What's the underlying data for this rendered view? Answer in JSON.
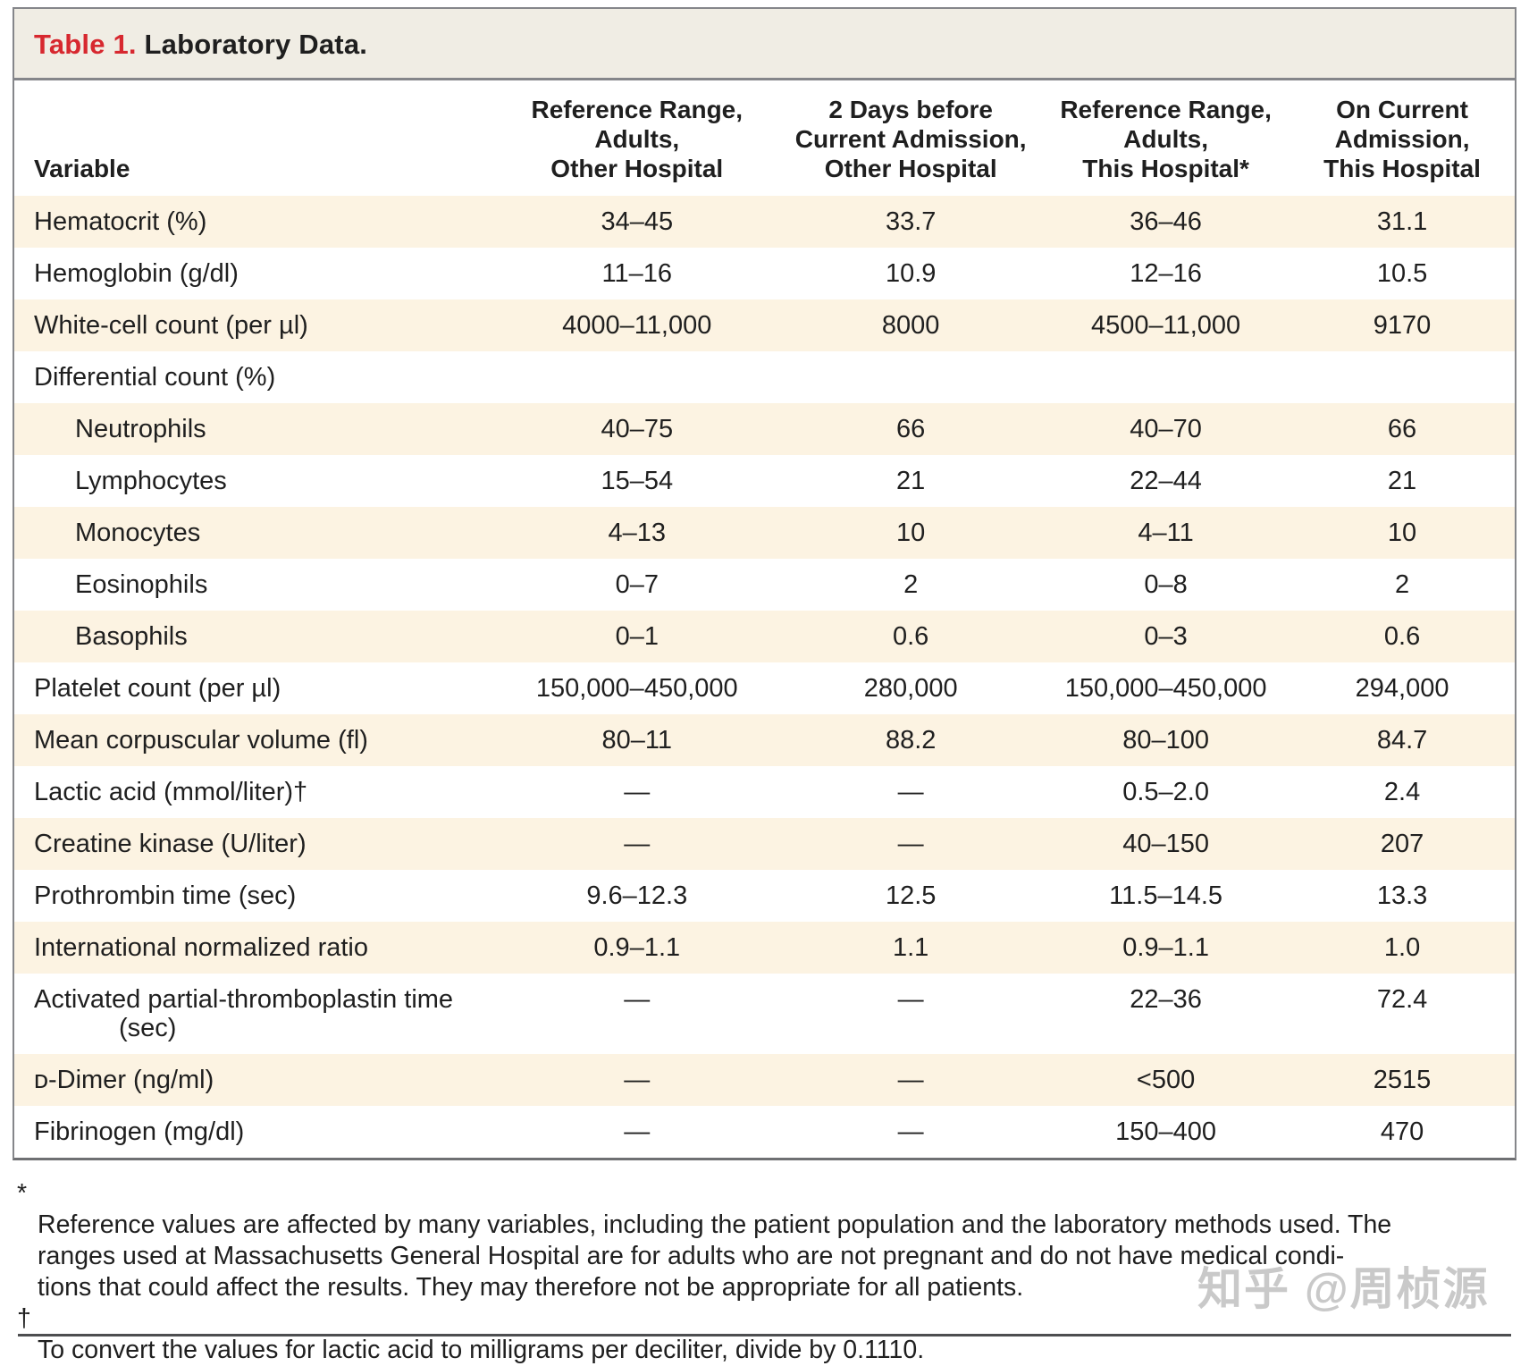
{
  "title": {
    "label": "Table 1.",
    "text": " Laboratory Data."
  },
  "table": {
    "columns": [
      "Variable",
      "Reference Range,\nAdults,\nOther Hospital",
      "2 Days before\nCurrent Admission,\nOther Hospital",
      "Reference Range,\nAdults,\nThis Hospital*",
      "On Current\nAdmission,\nThis Hospital"
    ],
    "rows": [
      {
        "label": "Hematocrit (%)",
        "indent": 0,
        "values": [
          "34–45",
          "33.7",
          "36–46",
          "31.1"
        ]
      },
      {
        "label": "Hemoglobin (g/dl)",
        "indent": 0,
        "values": [
          "11–16",
          "10.9",
          "12–16",
          "10.5"
        ]
      },
      {
        "label": "White-cell count (per µl)",
        "indent": 0,
        "values": [
          "4000–11,000",
          "8000",
          "4500–11,000",
          "9170"
        ]
      },
      {
        "label": "Differential count (%)",
        "indent": 0,
        "values": [
          "",
          "",
          "",
          ""
        ]
      },
      {
        "label": "Neutrophils",
        "indent": 1,
        "values": [
          "40–75",
          "66",
          "40–70",
          "66"
        ]
      },
      {
        "label": "Lymphocytes",
        "indent": 1,
        "values": [
          "15–54",
          "21",
          "22–44",
          "21"
        ]
      },
      {
        "label": "Monocytes",
        "indent": 1,
        "values": [
          "4–13",
          "10",
          "4–11",
          "10"
        ]
      },
      {
        "label": "Eosinophils",
        "indent": 1,
        "values": [
          "0–7",
          "2",
          "0–8",
          "2"
        ]
      },
      {
        "label": "Basophils",
        "indent": 1,
        "values": [
          "0–1",
          "0.6",
          "0–3",
          "0.6"
        ]
      },
      {
        "label": "Platelet count (per µl)",
        "indent": 0,
        "values": [
          "150,000–450,000",
          "280,000",
          "150,000–450,000",
          "294,000"
        ]
      },
      {
        "label": "Mean corpuscular volume (fl)",
        "indent": 0,
        "values": [
          "80–11",
          "88.2",
          "80–100",
          "84.7"
        ]
      },
      {
        "label": "Lactic acid (mmol/liter)†",
        "indent": 0,
        "values": [
          "—",
          "—",
          "0.5–2.0",
          "2.4"
        ]
      },
      {
        "label": "Creatine kinase (U/liter)",
        "indent": 0,
        "values": [
          "—",
          "—",
          "40–150",
          "207"
        ]
      },
      {
        "label": "Prothrombin time (sec)",
        "indent": 0,
        "values": [
          "9.6–12.3",
          "12.5",
          "11.5–14.5",
          "13.3"
        ]
      },
      {
        "label": "International normalized ratio",
        "indent": 0,
        "values": [
          "0.9–1.1",
          "1.1",
          "0.9–1.1",
          "1.0"
        ]
      },
      {
        "label": "Activated partial-thromboplastin time",
        "label2": "(sec)",
        "indent": 0,
        "values": [
          "—",
          "—",
          "22–36",
          "72.4"
        ]
      },
      {
        "label": "ᴅ-Dimer (ng/ml)",
        "indent": 0,
        "values": [
          "—",
          "—",
          "<500",
          "2515"
        ]
      },
      {
        "label": "Fibrinogen (mg/dl)",
        "indent": 0,
        "values": [
          "—",
          "—",
          "150–400",
          "470"
        ]
      }
    ]
  },
  "footnotes": [
    {
      "marker": "*",
      "text": "Reference values are affected by many variables, including the patient population and the laboratory methods used. The\nranges used at Massachusetts General Hospital are for adults who are not pregnant and do not have medical condi-\ntions that could affect the results. They may therefore not be appropriate for all patients."
    },
    {
      "marker": "†",
      "text": "To convert the values for lactic acid to milligrams per deciliter, divide by 0.1110."
    }
  ],
  "watermark": "知乎 @周桢源",
  "colors": {
    "accent_red": "#d7282f",
    "row_stripe": "#fcf3e2",
    "title_bg": "#f0ede4",
    "border_gray": "#85868a",
    "text": "#1f1f1f",
    "watermark_gray": "#c9c9c9"
  }
}
